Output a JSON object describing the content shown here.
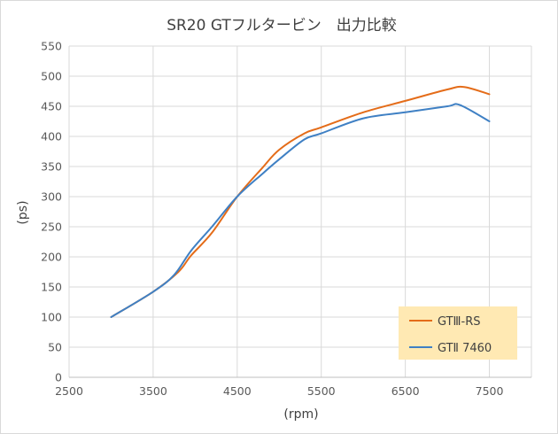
{
  "chart_data": {
    "type": "line",
    "title": "SR20 GTフルタービン　出力比較",
    "xlabel": "(rpm)",
    "ylabel": "(ps)",
    "xlim": [
      2500,
      8000
    ],
    "ylim": [
      0,
      550
    ],
    "xticks": [
      2500,
      3500,
      4500,
      5500,
      6500,
      7500
    ],
    "yticks": [
      0,
      50,
      100,
      150,
      200,
      250,
      300,
      350,
      400,
      450,
      500,
      550
    ],
    "grid": true,
    "legend_position": "bottom-right",
    "series": [
      {
        "name": "GTⅢ-RS",
        "color": "#e46c19",
        "points": [
          [
            3000,
            100
          ],
          [
            3500,
            142
          ],
          [
            3800,
            175
          ],
          [
            3950,
            202
          ],
          [
            4200,
            240
          ],
          [
            4500,
            300
          ],
          [
            4800,
            348
          ],
          [
            5000,
            378
          ],
          [
            5300,
            405
          ],
          [
            5500,
            415
          ],
          [
            6000,
            440
          ],
          [
            6500,
            459
          ],
          [
            7000,
            478
          ],
          [
            7200,
            482
          ],
          [
            7500,
            470
          ]
        ]
      },
      {
        "name": "GTⅡ 7460",
        "color": "#3f80c4",
        "points": [
          [
            3000,
            100
          ],
          [
            3500,
            142
          ],
          [
            3750,
            170
          ],
          [
            3950,
            210
          ],
          [
            4200,
            250
          ],
          [
            4500,
            300
          ],
          [
            4800,
            338
          ],
          [
            5000,
            362
          ],
          [
            5300,
            395
          ],
          [
            5500,
            405
          ],
          [
            6000,
            430
          ],
          [
            6500,
            440
          ],
          [
            7000,
            450
          ],
          [
            7150,
            452
          ],
          [
            7500,
            425
          ]
        ]
      }
    ]
  }
}
